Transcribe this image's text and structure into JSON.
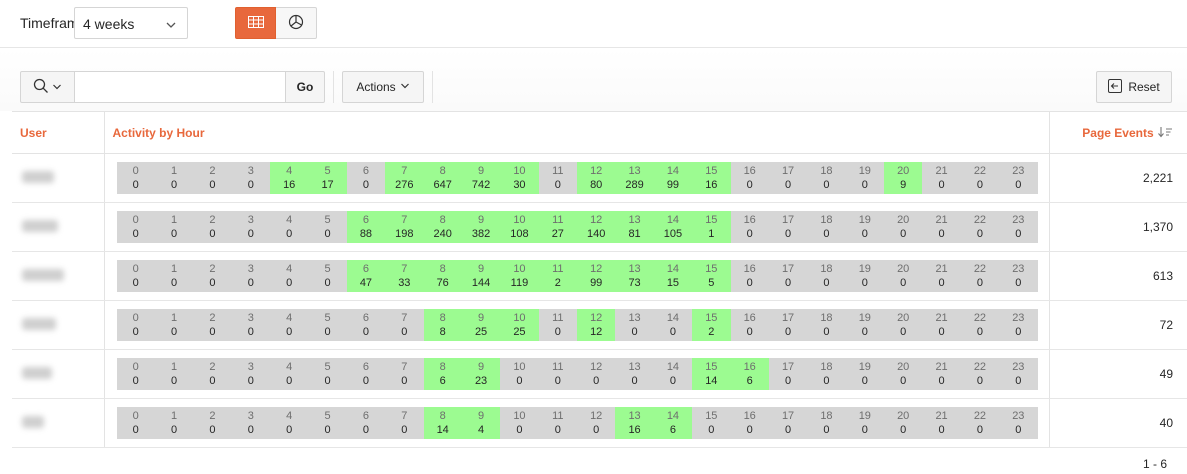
{
  "topbar": {
    "timeframe_label": "Timeframe",
    "timeframe_value": "4 weeks",
    "view_buttons": [
      {
        "name": "report-view",
        "icon": "grid-icon",
        "active": true
      },
      {
        "name": "chart-view",
        "icon": "pie-chart-icon",
        "active": false
      }
    ]
  },
  "toolbar": {
    "search_placeholder": "",
    "go_label": "Go",
    "actions_label": "Actions",
    "reset_label": "Reset"
  },
  "table": {
    "headers": {
      "user": "User",
      "activity": "Activity by Hour",
      "page_events": "Page Events"
    },
    "rows": [
      {
        "page_events": "2,221",
        "hours": [
          0,
          0,
          0,
          0,
          16,
          17,
          0,
          276,
          647,
          742,
          30,
          0,
          80,
          289,
          99,
          16,
          0,
          0,
          0,
          0,
          9,
          0,
          0,
          0
        ]
      },
      {
        "page_events": "1,370",
        "hours": [
          0,
          0,
          0,
          0,
          0,
          0,
          88,
          198,
          240,
          382,
          108,
          27,
          140,
          81,
          105,
          1,
          0,
          0,
          0,
          0,
          0,
          0,
          0,
          0
        ]
      },
      {
        "page_events": "613",
        "hours": [
          0,
          0,
          0,
          0,
          0,
          0,
          47,
          33,
          76,
          144,
          119,
          2,
          99,
          73,
          15,
          5,
          0,
          0,
          0,
          0,
          0,
          0,
          0,
          0
        ]
      },
      {
        "page_events": "72",
        "hours": [
          0,
          0,
          0,
          0,
          0,
          0,
          0,
          0,
          8,
          25,
          25,
          0,
          12,
          0,
          0,
          2,
          0,
          0,
          0,
          0,
          0,
          0,
          0,
          0
        ]
      },
      {
        "page_events": "49",
        "hours": [
          0,
          0,
          0,
          0,
          0,
          0,
          0,
          0,
          6,
          23,
          0,
          0,
          0,
          0,
          0,
          14,
          6,
          0,
          0,
          0,
          0,
          0,
          0,
          0
        ]
      },
      {
        "page_events": "40",
        "hours": [
          0,
          0,
          0,
          0,
          0,
          0,
          0,
          0,
          14,
          4,
          0,
          0,
          0,
          16,
          6,
          0,
          0,
          0,
          0,
          0,
          0,
          0,
          0,
          0
        ]
      }
    ]
  },
  "pagination": "1 - 6",
  "colors": {
    "accent": "#e8683c",
    "active_hour": "#9cfb91",
    "inactive_hour": "#d6d6d6"
  }
}
